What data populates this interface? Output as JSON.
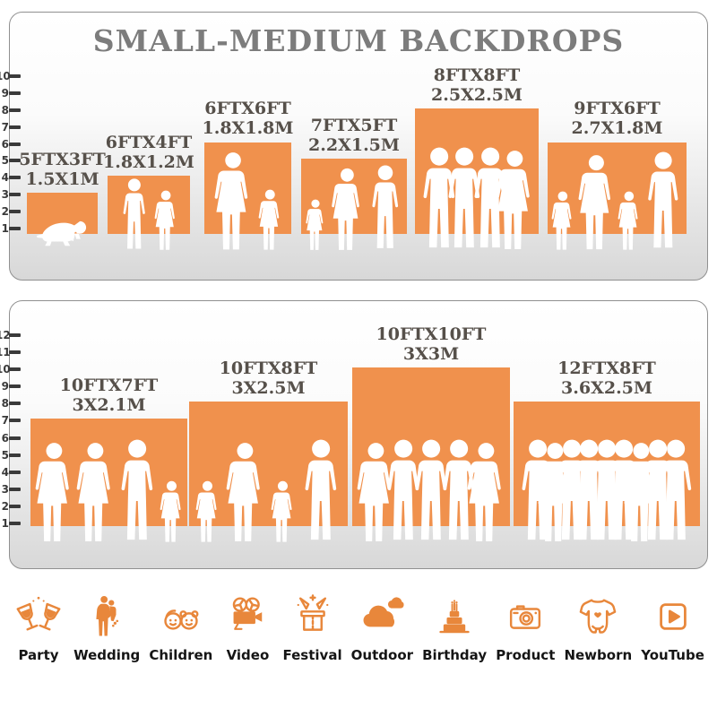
{
  "title": "SMALL-MEDIUM BACKDROPS",
  "chart_data": [
    {
      "type": "bar",
      "panel": "top",
      "title": "SMALL-MEDIUM BACKDROPS",
      "ylim": [
        0,
        10
      ],
      "y_ticks": [
        1,
        2,
        3,
        4,
        5,
        6,
        7,
        8,
        9,
        10
      ],
      "legend_position": "none",
      "grid": false,
      "bar_meaning": "each bar's width and height equal the backdrop size in feet",
      "bars": [
        {
          "label_ft": "5FTX3FT",
          "label_m": "1.5X1M",
          "width_ft": 5,
          "height_ft": 3,
          "figures": [
            "baby"
          ]
        },
        {
          "label_ft": "6FTX4FT",
          "label_m": "1.8X1.2M",
          "width_ft": 6,
          "height_ft": 4,
          "figures": [
            "boy",
            "girl"
          ]
        },
        {
          "label_ft": "6FTX6FT",
          "label_m": "1.8X1.8M",
          "width_ft": 6,
          "height_ft": 6,
          "figures": [
            "woman",
            "girl"
          ]
        },
        {
          "label_ft": "7FTX5FT",
          "label_m": "2.2X1.5M",
          "width_ft": 7,
          "height_ft": 5,
          "figures": [
            "girl",
            "woman",
            "man"
          ]
        },
        {
          "label_ft": "8FTX8FT",
          "label_m": "2.5X2.5M",
          "width_ft": 8,
          "height_ft": 8,
          "figures": [
            "man",
            "man",
            "man",
            "woman"
          ]
        },
        {
          "label_ft": "9FTX6FT",
          "label_m": "2.7X1.8M",
          "width_ft": 9,
          "height_ft": 6,
          "figures": [
            "girl",
            "woman",
            "girl",
            "man"
          ]
        }
      ]
    },
    {
      "type": "bar",
      "panel": "bottom",
      "ylim": [
        0,
        12
      ],
      "y_ticks": [
        1,
        2,
        3,
        4,
        5,
        6,
        7,
        8,
        9,
        10,
        11,
        12
      ],
      "legend_position": "none",
      "grid": false,
      "bar_meaning": "each bar's width and height equal the backdrop size in feet",
      "bars": [
        {
          "label_ft": "10FTX7FT",
          "label_m": "3X2.1M",
          "width_ft": 10,
          "height_ft": 7,
          "figures": [
            "woman",
            "woman",
            "man",
            "girl"
          ]
        },
        {
          "label_ft": "10FTX8FT",
          "label_m": "3X2.5M",
          "width_ft": 10,
          "height_ft": 8,
          "figures": [
            "girl",
            "woman",
            "girl",
            "man"
          ]
        },
        {
          "label_ft": "10FTX10FT",
          "label_m": "3X3M",
          "width_ft": 10,
          "height_ft": 10,
          "figures": [
            "woman",
            "man",
            "man",
            "man",
            "woman"
          ]
        },
        {
          "label_ft": "12FTX8FT",
          "label_m": "3.6X2.5M",
          "width_ft": 12,
          "height_ft": 8,
          "figures": [
            "man",
            "woman",
            "man",
            "man",
            "man",
            "man",
            "woman",
            "man",
            "man"
          ]
        }
      ]
    }
  ],
  "categories": [
    {
      "label": "Party",
      "icon": "party-icon"
    },
    {
      "label": "Wedding",
      "icon": "wedding-icon"
    },
    {
      "label": "Children",
      "icon": "children-icon"
    },
    {
      "label": "Video",
      "icon": "video-icon"
    },
    {
      "label": "Festival",
      "icon": "festival-icon"
    },
    {
      "label": "Outdoor",
      "icon": "outdoor-icon"
    },
    {
      "label": "Birthday",
      "icon": "birthday-icon"
    },
    {
      "label": "Product",
      "icon": "product-icon"
    },
    {
      "label": "Newborn",
      "icon": "newborn-icon"
    },
    {
      "label": "YouTube",
      "icon": "youtube-icon"
    }
  ],
  "colors": {
    "bar_orange": "#F0914D",
    "icon_orange": "#E8873B",
    "title_gray": "#7C7C7C",
    "label_dark": "#56504A",
    "tick_dark": "#3A3A3A",
    "panel_border": "#909090",
    "silhouette": "#FFFFFF"
  }
}
